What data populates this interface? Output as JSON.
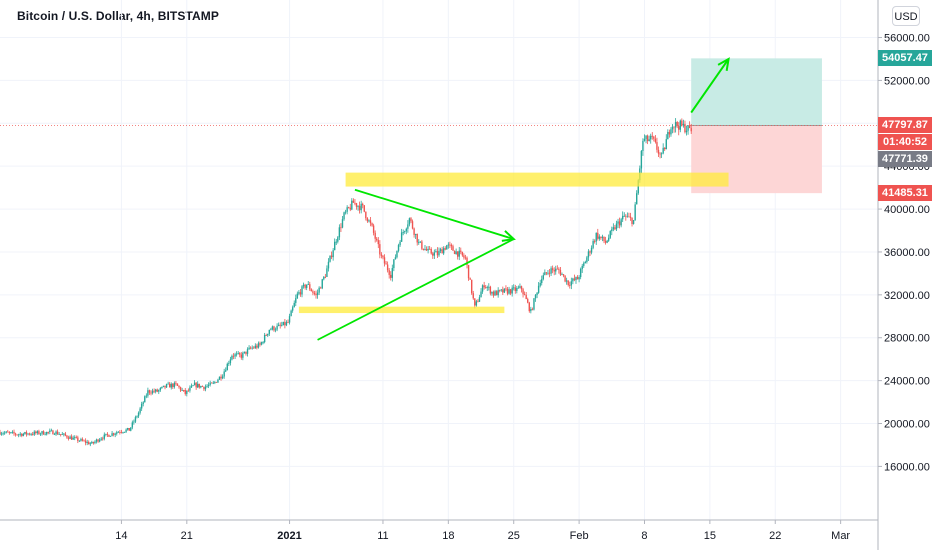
{
  "chart_data": {
    "type": "candlestick",
    "title": "Bitcoin / U.S. Dollar, 4h, BITSTAMP",
    "currency": "USD",
    "y_ticks": [
      16000,
      20000,
      24000,
      28000,
      32000,
      36000,
      40000,
      44000,
      48000,
      52000,
      56000
    ],
    "y_tick_labels": [
      "16000.00",
      "20000.00",
      "24000.00",
      "28000.00",
      "32000.00",
      "36000.00",
      "40000.00",
      "44000.00",
      "48000.00",
      "52000.00",
      "56000.00"
    ],
    "ylim": [
      11000,
      59500
    ],
    "xlim": [
      "2020-12-01",
      "2021-03-05"
    ],
    "x_ticks": [
      {
        "date": "2020-12-14",
        "label": "14",
        "bold": false
      },
      {
        "date": "2020-12-21",
        "label": "21",
        "bold": false
      },
      {
        "date": "2021-01-01",
        "label": "2021",
        "bold": true
      },
      {
        "date": "2021-01-11",
        "label": "11",
        "bold": false
      },
      {
        "date": "2021-01-18",
        "label": "18",
        "bold": false
      },
      {
        "date": "2021-01-25",
        "label": "25",
        "bold": false
      },
      {
        "date": "2021-02-01",
        "label": "Feb",
        "bold": false
      },
      {
        "date": "2021-02-08",
        "label": "8",
        "bold": false
      },
      {
        "date": "2021-02-15",
        "label": "15",
        "bold": false
      },
      {
        "date": "2021-02-22",
        "label": "22",
        "bold": false
      },
      {
        "date": "2021-03-01",
        "label": "Mar",
        "bold": false
      }
    ],
    "price_path": [
      [
        "2020-12-01",
        19200
      ],
      [
        "2020-12-03",
        19000
      ],
      [
        "2020-12-05",
        19100
      ],
      [
        "2020-12-07",
        19200
      ],
      [
        "2020-12-09",
        18600
      ],
      [
        "2020-12-11",
        18100
      ],
      [
        "2020-12-12",
        18700
      ],
      [
        "2020-12-14",
        19300
      ],
      [
        "2020-12-15",
        19400
      ],
      [
        "2020-12-16",
        21000
      ],
      [
        "2020-12-17",
        23000
      ],
      [
        "2020-12-18",
        23000
      ],
      [
        "2020-12-19",
        23500
      ],
      [
        "2020-12-20",
        23600
      ],
      [
        "2020-12-21",
        22800
      ],
      [
        "2020-12-22",
        23600
      ],
      [
        "2020-12-23",
        23400
      ],
      [
        "2020-12-24",
        23700
      ],
      [
        "2020-12-25",
        24600
      ],
      [
        "2020-12-26",
        26400
      ],
      [
        "2020-12-27",
        26300
      ],
      [
        "2020-12-28",
        27000
      ],
      [
        "2020-12-29",
        27300
      ],
      [
        "2020-12-30",
        28800
      ],
      [
        "2020-12-31",
        29000
      ],
      [
        "2021-01-01",
        29400
      ],
      [
        "2021-01-02",
        32000
      ],
      [
        "2021-01-03",
        33000
      ],
      [
        "2021-01-04",
        31900
      ],
      [
        "2021-01-05",
        33900
      ],
      [
        "2021-01-06",
        36800
      ],
      [
        "2021-01-07",
        39400
      ],
      [
        "2021-01-08",
        40600
      ],
      [
        "2021-01-09",
        40100
      ],
      [
        "2021-01-10",
        38200
      ],
      [
        "2021-01-11",
        35500
      ],
      [
        "2021-01-12",
        33900
      ],
      [
        "2021-01-13",
        37300
      ],
      [
        "2021-01-14",
        39100
      ],
      [
        "2021-01-15",
        36800
      ],
      [
        "2021-01-16",
        36000
      ],
      [
        "2021-01-17",
        35800
      ],
      [
        "2021-01-18",
        36600
      ],
      [
        "2021-01-19",
        36000
      ],
      [
        "2021-01-20",
        35400
      ],
      [
        "2021-01-21",
        30800
      ],
      [
        "2021-01-22",
        33000
      ],
      [
        "2021-01-23",
        32100
      ],
      [
        "2021-01-24",
        32300
      ],
      [
        "2021-01-25",
        32400
      ],
      [
        "2021-01-26",
        32600
      ],
      [
        "2021-01-27",
        30400
      ],
      [
        "2021-01-28",
        33400
      ],
      [
        "2021-01-29",
        34300
      ],
      [
        "2021-01-30",
        34300
      ],
      [
        "2021-01-31",
        33100
      ],
      [
        "2021-02-01",
        33500
      ],
      [
        "2021-02-02",
        35500
      ],
      [
        "2021-02-03",
        37600
      ],
      [
        "2021-02-04",
        36900
      ],
      [
        "2021-02-05",
        38300
      ],
      [
        "2021-02-06",
        39300
      ],
      [
        "2021-02-07",
        38900
      ],
      [
        "2021-02-08",
        46400
      ],
      [
        "2021-02-09",
        46500
      ],
      [
        "2021-02-10",
        44800
      ],
      [
        "2021-02-11",
        47900
      ],
      [
        "2021-02-12",
        47800
      ],
      [
        "2021-02-13",
        47400
      ]
    ],
    "price_lines": [
      {
        "label": "54057.47",
        "price": 54057.47,
        "color": "#26a69a"
      },
      {
        "label": "47797.87",
        "price": 47797.87,
        "color": "#ef5350"
      },
      {
        "label": "01:40:52",
        "price": 46800,
        "color": "#ef5350"
      },
      {
        "label": "47771.39",
        "price": 45500,
        "color": "#787b86"
      },
      {
        "label": "41485.31",
        "price": 41485.31,
        "color": "#ef5350"
      }
    ],
    "annotations": {
      "resistance_zone": {
        "from": "2021-01-07",
        "to": "2021-02-17",
        "low": 42100,
        "high": 43400,
        "color": "#ffeb3b"
      },
      "support_zone": {
        "from": "2021-01-02",
        "to": "2021-01-24",
        "low": 30300,
        "high": 30900,
        "color": "#ffeb3b"
      },
      "triangle": {
        "color": "#00e600",
        "lines": [
          [
            [
              "2021-01-08",
              41800
            ],
            [
              "2021-01-25",
              37200
            ]
          ],
          [
            [
              "2021-01-04",
              27800
            ],
            [
              "2021-01-25",
              37200
            ]
          ]
        ]
      },
      "long_position": {
        "from": "2021-02-13",
        "to": "2021-02-27",
        "entry": 47797.87,
        "target": 54057.47,
        "stop": 41485.31,
        "profit_color": "#c8ebe5",
        "loss_color": "#fdd6d6"
      },
      "forecast_arrow": {
        "from": [
          "2021-02-13",
          49000
        ],
        "to": [
          "2021-02-17",
          54000
        ],
        "color": "#00e600"
      }
    }
  }
}
